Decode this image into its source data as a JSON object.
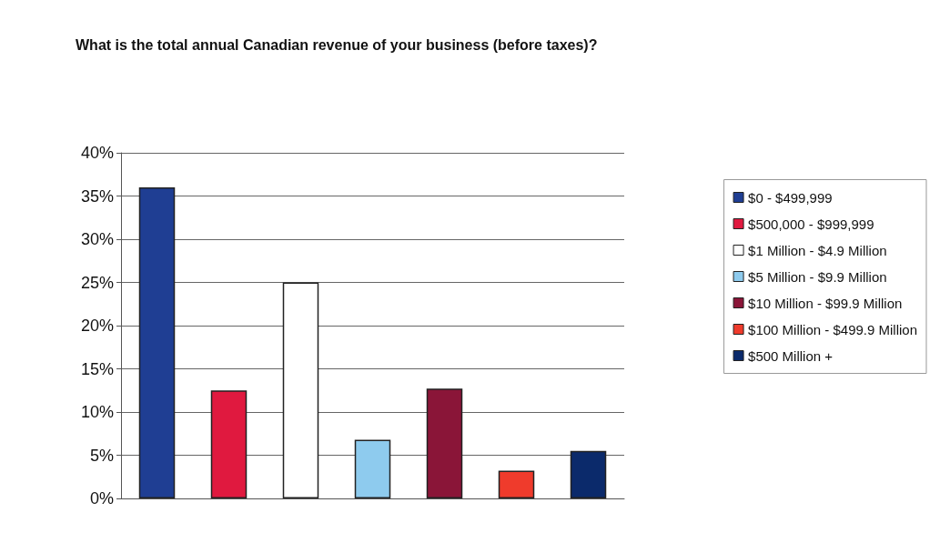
{
  "chart_data": {
    "type": "bar",
    "title": "What is the total annual Canadian revenue of your business (before taxes)?",
    "categories": [
      null,
      null,
      null,
      null,
      null,
      null,
      null
    ],
    "series": [
      {
        "name": "$0 - $499,999",
        "color": "#1f3e93",
        "values": [
          36,
          null,
          null,
          null,
          null,
          null,
          null
        ]
      },
      {
        "name": "$500,000 - $999,999",
        "color": "#e0193f",
        "values": [
          null,
          12.5,
          null,
          null,
          null,
          null,
          null
        ]
      },
      {
        "name": "$1 Million - $4.9 Million",
        "color": "#ffffff",
        "values": [
          null,
          null,
          25,
          null,
          null,
          null,
          null
        ]
      },
      {
        "name": "$5 Million - $9.9 Million",
        "color": "#8ecbee",
        "values": [
          null,
          null,
          null,
          6.8,
          null,
          null,
          null
        ]
      },
      {
        "name": "$10 Million - $99.9 Million",
        "color": "#8a1538",
        "values": [
          null,
          null,
          null,
          null,
          12.7,
          null,
          null
        ]
      },
      {
        "name": "$100 Million - $499.9 Million",
        "color": "#ef3b2c",
        "values": [
          null,
          null,
          null,
          null,
          null,
          3.2,
          null
        ]
      },
      {
        "name": "$500 Million +",
        "color": "#0b2a6b",
        "values": [
          null,
          null,
          null,
          null,
          null,
          null,
          5.5
        ]
      }
    ],
    "ylim": [
      0,
      40
    ],
    "yticks": [
      {
        "value": 0,
        "label": "0%"
      },
      {
        "value": 5,
        "label": "5%"
      },
      {
        "value": 10,
        "label": "10%"
      },
      {
        "value": 15,
        "label": "15%"
      },
      {
        "value": 20,
        "label": "20%"
      },
      {
        "value": 25,
        "label": "25%"
      },
      {
        "value": 30,
        "label": "30%"
      },
      {
        "value": 35,
        "label": "35%"
      },
      {
        "value": 40,
        "label": "40%"
      }
    ],
    "grid": "y",
    "legend": "right"
  }
}
